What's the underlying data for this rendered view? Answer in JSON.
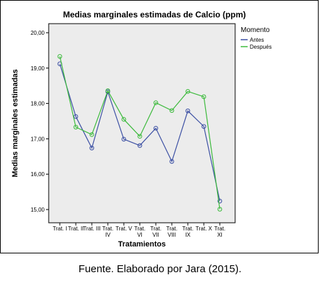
{
  "chart_data": {
    "type": "line",
    "title": "Medias marginales estimadas de Calcio (ppm)",
    "xlabel": "Tratamientos",
    "ylabel": "Medias marginales estimadas",
    "ylim": [
      15.0,
      20.0
    ],
    "yticks": [
      "15,00",
      "16,00",
      "17,00",
      "18,00",
      "19,00",
      "20,00"
    ],
    "categories": [
      [
        "Trat. I"
      ],
      [
        "Trat. II"
      ],
      [
        "Trat. III"
      ],
      [
        "Trat.",
        "IV"
      ],
      [
        "Trat. V"
      ],
      [
        "Trat.",
        "VI"
      ],
      [
        "Trat.",
        "VII"
      ],
      [
        "Trat.",
        "VIII"
      ],
      [
        "Trat.",
        "IX"
      ],
      [
        "Trat. X"
      ],
      [
        "Trat.",
        "XI"
      ]
    ],
    "legend": {
      "title": "Momento",
      "position": "top-right"
    },
    "grid": false,
    "series": [
      {
        "name": "Antes",
        "color": "#3b4fa3",
        "values": [
          19.12,
          17.63,
          16.74,
          18.33,
          16.99,
          16.81,
          17.3,
          16.36,
          17.79,
          17.35,
          15.24
        ]
      },
      {
        "name": "Después",
        "color": "#3cba3c",
        "values": [
          19.33,
          17.33,
          17.12,
          18.36,
          17.55,
          17.07,
          18.02,
          17.8,
          18.34,
          18.19,
          15.01
        ]
      }
    ]
  },
  "caption": "Fuente. Elaborado por Jara (2015).",
  "colors": {
    "plot_background": "#ececec",
    "frame": "#000000"
  }
}
